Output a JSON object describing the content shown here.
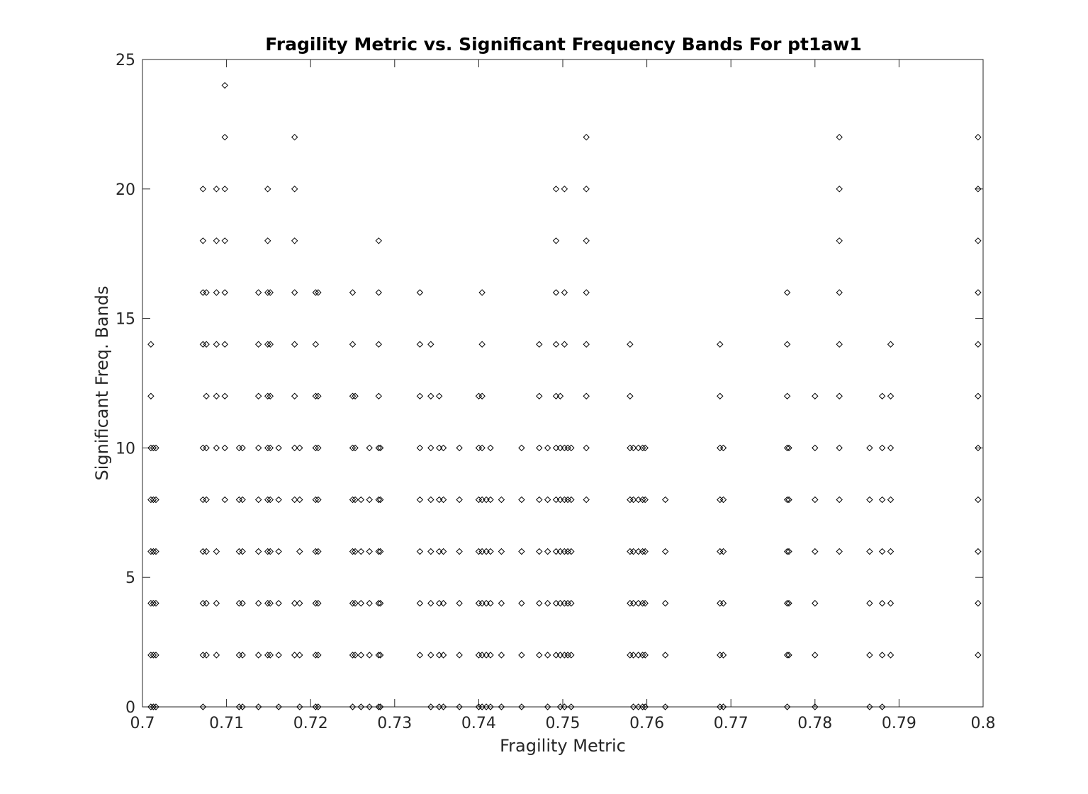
{
  "chart_data": {
    "type": "scatter",
    "title": "Fragility Metric vs. Significant Frequency Bands For pt1aw1",
    "xlabel": "Fragility Metric",
    "ylabel": "Significant Freq. Bands",
    "xlim": [
      0.7,
      0.8
    ],
    "ylim": [
      0,
      25
    ],
    "xticks": [
      "0.7",
      "0.71",
      "0.72",
      "0.73",
      "0.74",
      "0.75",
      "0.76",
      "0.77",
      "0.78",
      "0.79",
      "0.8"
    ],
    "yticks": [
      "0",
      "5",
      "10",
      "15",
      "20",
      "25"
    ],
    "grid": false,
    "legend": "none",
    "marker": "diamond-open",
    "marker_color": "#000000",
    "columns": [
      {
        "x": 0.701,
        "y": [
          0,
          2,
          4,
          6,
          8,
          10,
          12,
          14
        ]
      },
      {
        "x": 0.7013,
        "y": [
          0,
          2,
          4,
          6,
          8,
          10
        ]
      },
      {
        "x": 0.7016,
        "y": [
          0,
          2,
          4,
          6,
          8,
          10
        ]
      },
      {
        "x": 0.7072,
        "y": [
          0,
          2,
          4,
          6,
          8,
          10,
          14,
          16,
          18,
          20
        ]
      },
      {
        "x": 0.7076,
        "y": [
          2,
          4,
          6,
          8,
          10,
          12,
          14,
          16
        ]
      },
      {
        "x": 0.7088,
        "y": [
          2,
          4,
          6,
          10,
          12,
          14,
          16,
          18,
          20
        ]
      },
      {
        "x": 0.7098,
        "y": [
          8,
          10,
          12,
          14,
          16,
          18,
          20,
          22,
          24
        ]
      },
      {
        "x": 0.7115,
        "y": [
          0,
          2,
          4,
          6,
          8,
          10
        ]
      },
      {
        "x": 0.7119,
        "y": [
          0,
          2,
          4,
          6,
          8,
          10
        ]
      },
      {
        "x": 0.7138,
        "y": [
          0,
          2,
          4,
          6,
          8,
          10,
          12,
          14,
          16
        ]
      },
      {
        "x": 0.7149,
        "y": [
          2,
          4,
          6,
          8,
          10,
          12,
          14,
          16,
          18,
          20
        ]
      },
      {
        "x": 0.7152,
        "y": [
          2,
          4,
          6,
          8,
          10,
          12,
          14,
          16
        ]
      },
      {
        "x": 0.7162,
        "y": [
          0,
          2,
          4,
          6,
          8,
          10
        ]
      },
      {
        "x": 0.7181,
        "y": [
          2,
          4,
          8,
          10,
          12,
          14,
          16,
          18,
          20,
          22
        ]
      },
      {
        "x": 0.7187,
        "y": [
          0,
          2,
          4,
          6,
          8,
          10
        ]
      },
      {
        "x": 0.7206,
        "y": [
          0,
          2,
          4,
          6,
          8,
          10,
          12,
          14,
          16
        ]
      },
      {
        "x": 0.7209,
        "y": [
          0,
          2,
          4,
          6,
          8,
          10,
          12,
          16
        ]
      },
      {
        "x": 0.725,
        "y": [
          0,
          2,
          4,
          6,
          8,
          10,
          12,
          14,
          16
        ]
      },
      {
        "x": 0.7253,
        "y": [
          2,
          4,
          6,
          8,
          10,
          12
        ]
      },
      {
        "x": 0.726,
        "y": [
          0,
          2,
          4,
          6,
          8
        ]
      },
      {
        "x": 0.727,
        "y": [
          0,
          2,
          4,
          6,
          8,
          10
        ]
      },
      {
        "x": 0.7281,
        "y": [
          0,
          2,
          4,
          6,
          8,
          10,
          12,
          14,
          16,
          18
        ]
      },
      {
        "x": 0.7283,
        "y": [
          0,
          2,
          4,
          6,
          8,
          10
        ]
      },
      {
        "x": 0.733,
        "y": [
          2,
          4,
          6,
          8,
          10,
          12,
          14,
          16
        ]
      },
      {
        "x": 0.7343,
        "y": [
          0,
          2,
          4,
          6,
          8,
          10,
          12,
          14
        ]
      },
      {
        "x": 0.7353,
        "y": [
          0,
          2,
          4,
          6,
          8,
          10,
          12
        ]
      },
      {
        "x": 0.7358,
        "y": [
          0,
          2,
          4,
          6,
          8,
          10
        ]
      },
      {
        "x": 0.7377,
        "y": [
          0,
          2,
          4,
          6,
          8,
          10
        ]
      },
      {
        "x": 0.74,
        "y": [
          0,
          2,
          4,
          6,
          8,
          10,
          12
        ]
      },
      {
        "x": 0.7404,
        "y": [
          0,
          2,
          4,
          6,
          8,
          10,
          12,
          14,
          16
        ]
      },
      {
        "x": 0.7409,
        "y": [
          0,
          2,
          4,
          6,
          8
        ]
      },
      {
        "x": 0.7414,
        "y": [
          0,
          2,
          4,
          6,
          8,
          10
        ]
      },
      {
        "x": 0.7427,
        "y": [
          0,
          2,
          4,
          6,
          8
        ]
      },
      {
        "x": 0.7451,
        "y": [
          0,
          2,
          4,
          6,
          8,
          10
        ]
      },
      {
        "x": 0.7472,
        "y": [
          2,
          4,
          6,
          8,
          10,
          12,
          14
        ]
      },
      {
        "x": 0.7482,
        "y": [
          0,
          2,
          4,
          6,
          8,
          10
        ]
      },
      {
        "x": 0.7492,
        "y": [
          2,
          4,
          6,
          8,
          10,
          12,
          14,
          16,
          18,
          20
        ]
      },
      {
        "x": 0.7497,
        "y": [
          0,
          2,
          4,
          6,
          8,
          10,
          12
        ]
      },
      {
        "x": 0.7502,
        "y": [
          0,
          2,
          4,
          6,
          8,
          10,
          14,
          16,
          20
        ]
      },
      {
        "x": 0.7506,
        "y": [
          2,
          4,
          6,
          8,
          10
        ]
      },
      {
        "x": 0.751,
        "y": [
          0,
          2,
          4,
          6,
          8,
          10
        ]
      },
      {
        "x": 0.7528,
        "y": [
          8,
          10,
          12,
          14,
          16,
          18,
          20,
          22
        ]
      },
      {
        "x": 0.758,
        "y": [
          2,
          4,
          6,
          8,
          10,
          12,
          14
        ]
      },
      {
        "x": 0.7584,
        "y": [
          0,
          2,
          4,
          6,
          8,
          10
        ]
      },
      {
        "x": 0.759,
        "y": [
          0,
          2,
          4,
          6,
          8,
          10
        ]
      },
      {
        "x": 0.7595,
        "y": [
          0,
          2,
          4,
          6,
          8,
          10
        ]
      },
      {
        "x": 0.7598,
        "y": [
          0,
          2,
          4,
          6,
          8,
          10
        ]
      },
      {
        "x": 0.7622,
        "y": [
          0,
          2,
          4,
          6,
          8
        ]
      },
      {
        "x": 0.7687,
        "y": [
          0,
          2,
          4,
          6,
          8,
          10,
          12,
          14
        ]
      },
      {
        "x": 0.7691,
        "y": [
          0,
          2,
          4,
          6,
          8,
          10
        ]
      },
      {
        "x": 0.7767,
        "y": [
          0,
          2,
          4,
          6,
          8,
          10,
          12,
          14,
          16
        ]
      },
      {
        "x": 0.7769,
        "y": [
          2,
          4,
          6,
          8,
          10
        ]
      },
      {
        "x": 0.78,
        "y": [
          0,
          2,
          4,
          6,
          8,
          10,
          12
        ]
      },
      {
        "x": 0.7829,
        "y": [
          6,
          8,
          10,
          12,
          14,
          16,
          18,
          20,
          22
        ]
      },
      {
        "x": 0.7865,
        "y": [
          0,
          2,
          4,
          6,
          8,
          10
        ]
      },
      {
        "x": 0.788,
        "y": [
          0,
          2,
          4,
          6,
          8,
          10,
          12
        ]
      },
      {
        "x": 0.789,
        "y": [
          2,
          4,
          6,
          8,
          10,
          12,
          14
        ]
      },
      {
        "x": 0.7994,
        "y": [
          2,
          4,
          6,
          8,
          10,
          12,
          14,
          16,
          18,
          20,
          22
        ]
      }
    ]
  }
}
